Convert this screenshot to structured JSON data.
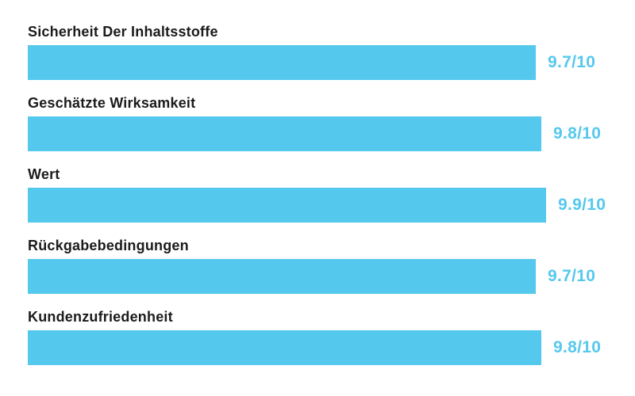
{
  "page": {
    "background_color": "#ffffff",
    "bar_color": "#55c8ee",
    "label_color": "#1b1b1b",
    "value_text_color": "#55c8ee"
  },
  "chart_data": {
    "type": "bar",
    "orientation": "horizontal",
    "title": "",
    "xlabel": "",
    "ylabel": "",
    "categories": [
      "Sicherheit Der Inhaltsstoffe",
      "Geschätzte Wirksamkeit",
      "Wert",
      "Rückgabebedingungen",
      "Kundenzufriedenheit"
    ],
    "values": [
      9.7,
      9.8,
      9.9,
      9.7,
      9.8
    ],
    "value_labels": [
      "9.7/10",
      "9.8/10",
      "9.9/10",
      "9.7/10",
      "9.8/10"
    ],
    "max_value": 10,
    "grid": false,
    "legend": false,
    "bar_color": "#55c8ee"
  },
  "rows": [
    {
      "label": "Sicherheit Der Inhaltsstoffe",
      "value": 9.7,
      "value_label": "9.7/10"
    },
    {
      "label": "Geschätzte Wirksamkeit",
      "value": 9.8,
      "value_label": "9.8/10"
    },
    {
      "label": "Wert",
      "value": 9.9,
      "value_label": "9.9/10"
    },
    {
      "label": "Rückgabebedingungen",
      "value": 9.7,
      "value_label": "9.7/10"
    },
    {
      "label": "Kundenzufriedenheit",
      "value": 9.8,
      "value_label": "9.8/10"
    }
  ]
}
